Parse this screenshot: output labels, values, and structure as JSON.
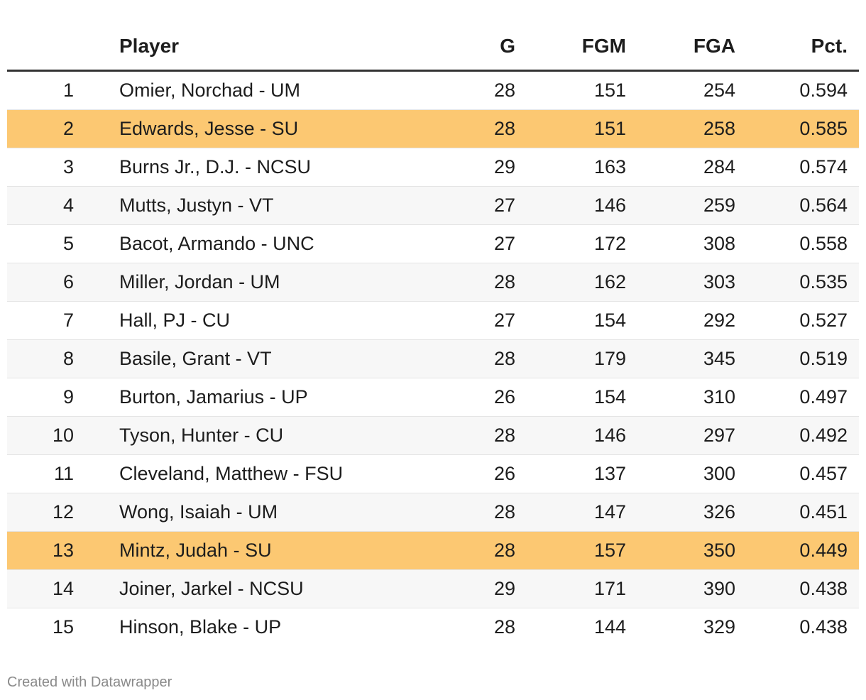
{
  "chart_data": {
    "type": "table",
    "columns": [
      "",
      "Player",
      "G",
      "FGM",
      "FGA",
      "Pct."
    ],
    "rows": [
      {
        "rank": "1",
        "player": "Omier, Norchad - UM",
        "g": "28",
        "fgm": "151",
        "fga": "254",
        "pct": "0.594",
        "highlight": false
      },
      {
        "rank": "2",
        "player": "Edwards, Jesse - SU",
        "g": "28",
        "fgm": "151",
        "fga": "258",
        "pct": "0.585",
        "highlight": true
      },
      {
        "rank": "3",
        "player": "Burns Jr., D.J. - NCSU",
        "g": "29",
        "fgm": "163",
        "fga": "284",
        "pct": "0.574",
        "highlight": false
      },
      {
        "rank": "4",
        "player": "Mutts, Justyn - VT",
        "g": "27",
        "fgm": "146",
        "fga": "259",
        "pct": "0.564",
        "highlight": false
      },
      {
        "rank": "5",
        "player": "Bacot, Armando - UNC",
        "g": "27",
        "fgm": "172",
        "fga": "308",
        "pct": "0.558",
        "highlight": false
      },
      {
        "rank": "6",
        "player": "Miller, Jordan - UM",
        "g": "28",
        "fgm": "162",
        "fga": "303",
        "pct": "0.535",
        "highlight": false
      },
      {
        "rank": "7",
        "player": "Hall, PJ - CU",
        "g": "27",
        "fgm": "154",
        "fga": "292",
        "pct": "0.527",
        "highlight": false
      },
      {
        "rank": "8",
        "player": "Basile, Grant - VT",
        "g": "28",
        "fgm": "179",
        "fga": "345",
        "pct": "0.519",
        "highlight": false
      },
      {
        "rank": "9",
        "player": "Burton, Jamarius - UP",
        "g": "26",
        "fgm": "154",
        "fga": "310",
        "pct": "0.497",
        "highlight": false
      },
      {
        "rank": "10",
        "player": "Tyson, Hunter - CU",
        "g": "28",
        "fgm": "146",
        "fga": "297",
        "pct": "0.492",
        "highlight": false
      },
      {
        "rank": "11",
        "player": "Cleveland, Matthew - FSU",
        "g": "26",
        "fgm": "137",
        "fga": "300",
        "pct": "0.457",
        "highlight": false
      },
      {
        "rank": "12",
        "player": "Wong, Isaiah - UM",
        "g": "28",
        "fgm": "147",
        "fga": "326",
        "pct": "0.451",
        "highlight": false
      },
      {
        "rank": "13",
        "player": "Mintz, Judah - SU",
        "g": "28",
        "fgm": "157",
        "fga": "350",
        "pct": "0.449",
        "highlight": true
      },
      {
        "rank": "14",
        "player": "Joiner, Jarkel - NCSU",
        "g": "29",
        "fgm": "171",
        "fga": "390",
        "pct": "0.438",
        "highlight": false
      },
      {
        "rank": "15",
        "player": "Hinson, Blake - UP",
        "g": "28",
        "fgm": "144",
        "fga": "329",
        "pct": "0.438",
        "highlight": false
      }
    ],
    "highlight_color": "#fcc872"
  },
  "footer": {
    "credit": "Created with Datawrapper"
  }
}
